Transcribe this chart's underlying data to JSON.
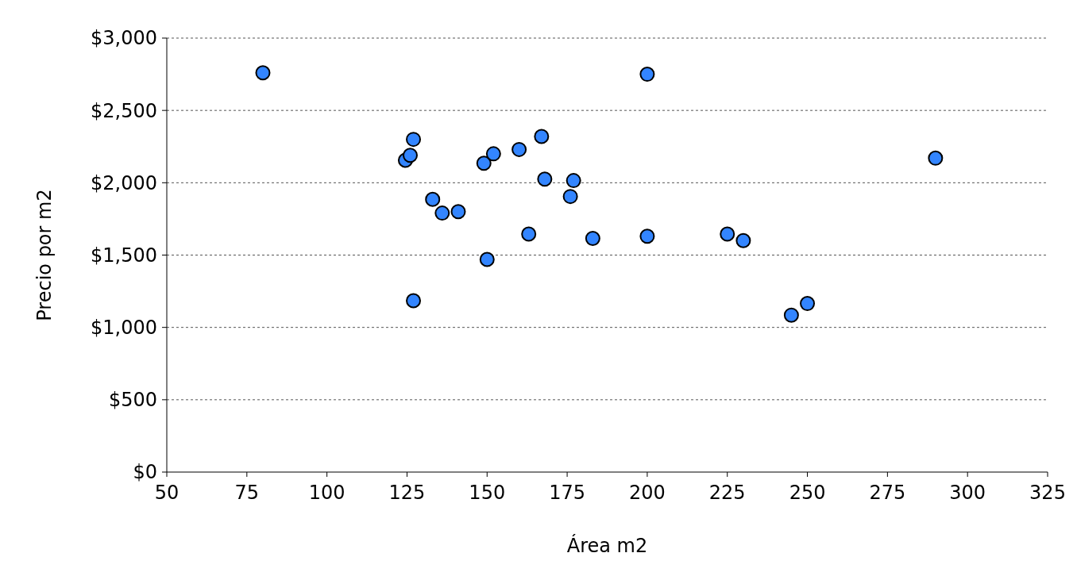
{
  "chart_data": {
    "type": "scatter",
    "xlabel": "Área m2",
    "ylabel": "Precio por m2",
    "x": [
      80,
      200,
      127,
      124.5,
      126,
      133,
      136,
      141,
      149,
      152,
      160,
      167,
      168,
      177,
      176,
      163,
      183,
      200,
      150,
      127,
      225,
      230,
      245,
      250,
      290
    ],
    "series": [
      {
        "color": "#3385ff",
        "values": [
          2760,
          2750,
          2300,
          2155,
          2190,
          1885,
          1790,
          1800,
          2135,
          2200,
          2230,
          2320,
          2025,
          2015,
          1905,
          1645,
          1615,
          1630,
          1470,
          1185,
          1645,
          1600,
          1085,
          1165,
          2170
        ]
      }
    ],
    "xlim": [
      50,
      325
    ],
    "xticks": [
      50,
      75,
      100,
      125,
      150,
      175,
      200,
      225,
      250,
      275,
      300,
      325
    ],
    "ylim": [
      0,
      3000
    ],
    "yticks": [
      {
        "value": 0,
        "label": "$0"
      },
      {
        "value": 500,
        "label": "$500"
      },
      {
        "value": 1000,
        "label": "$1,000"
      },
      {
        "value": 1500,
        "label": "$1,500"
      },
      {
        "value": 2000,
        "label": "$2,000"
      },
      {
        "value": 2500,
        "label": "$2,500"
      },
      {
        "value": 3000,
        "label": "$3,000"
      }
    ],
    "grid": "y",
    "marker": "circle"
  }
}
